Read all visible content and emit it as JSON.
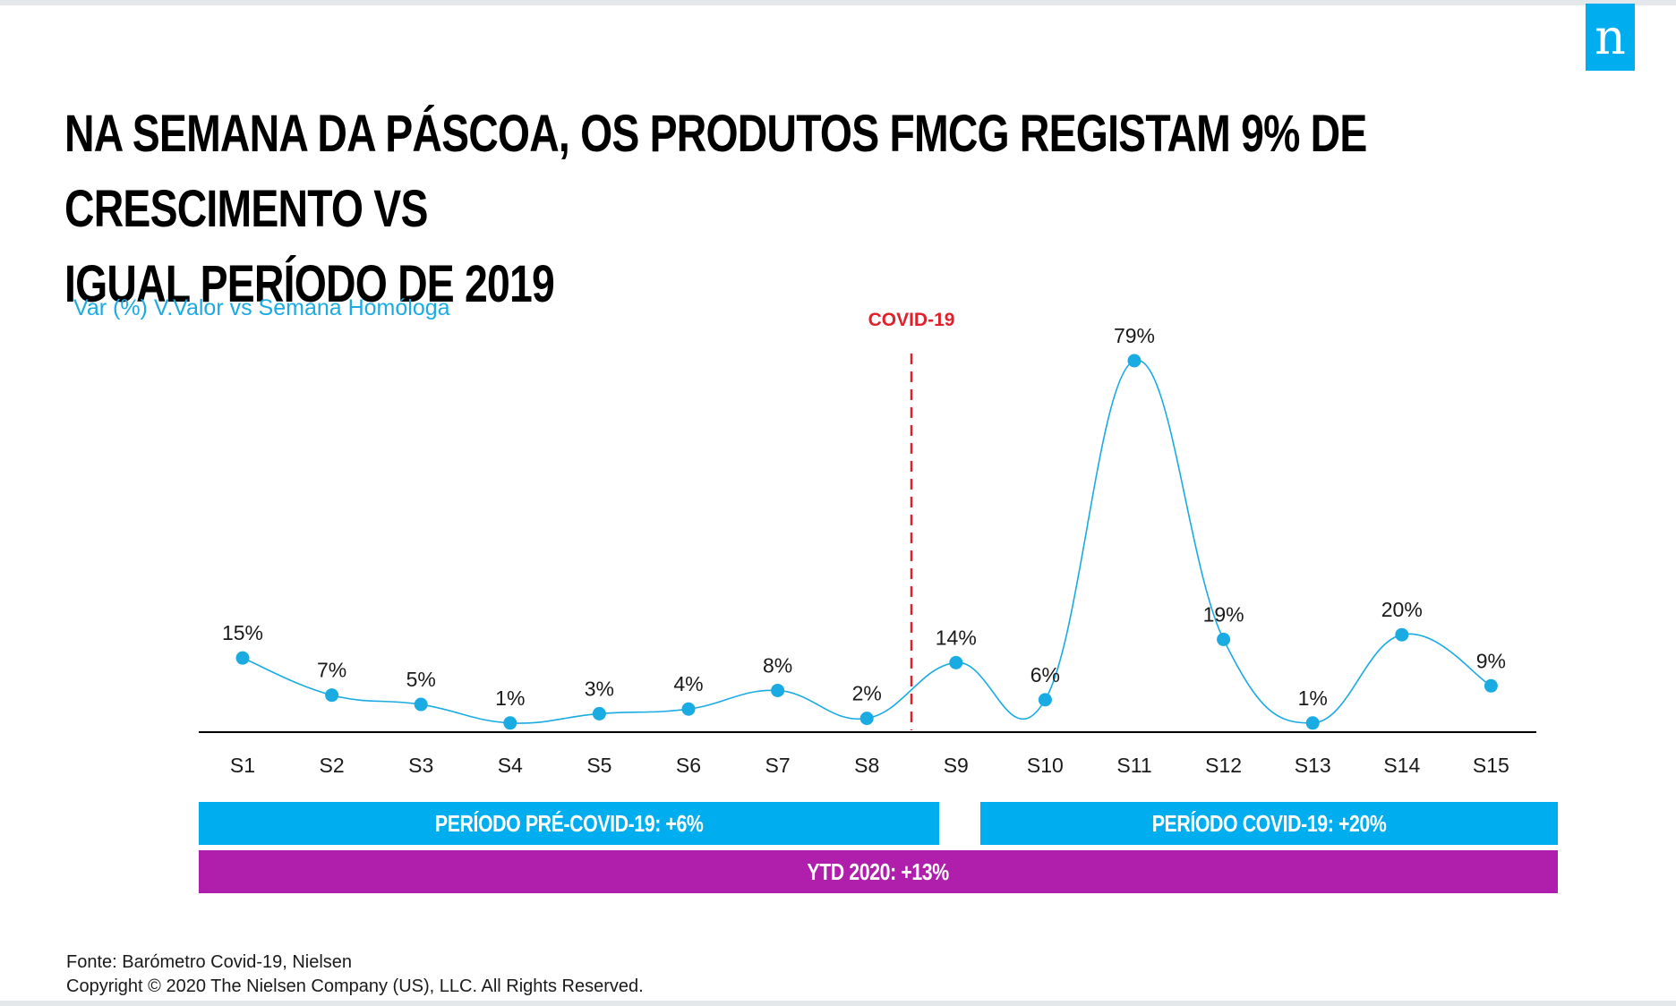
{
  "logo": {
    "letter": "n"
  },
  "header": {
    "title_line1": "NA SEMANA DA PÁSCOA, OS PRODUTOS FMCG REGISTAM 9% DE CRESCIMENTO VS",
    "title_line2": "IGUAL PERÍODO DE 2019"
  },
  "chart_subtitle": "Var (%) V.Valor vs Semana Homóloga",
  "chart_data": {
    "type": "line",
    "categories": [
      "S1",
      "S2",
      "S3",
      "S4",
      "S5",
      "S6",
      "S7",
      "S8",
      "S9",
      "S10",
      "S11",
      "S12",
      "S13",
      "S14",
      "S15"
    ],
    "values": [
      15,
      7,
      5,
      1,
      3,
      4,
      8,
      2,
      14,
      6,
      79,
      19,
      1,
      20,
      9
    ],
    "data_labels": [
      "15%",
      "7%",
      "5%",
      "1%",
      "3%",
      "4%",
      "8%",
      "2%",
      "14%",
      "6%",
      "79%",
      "19%",
      "1%",
      "20%",
      "9%"
    ],
    "ylim": [
      0,
      79
    ],
    "grid": false,
    "series_color": "#1aabe3",
    "annotation": {
      "label": "COVID-19",
      "between": [
        "S8",
        "S9"
      ],
      "color": "#e0202a",
      "style": "dashed"
    }
  },
  "bands": {
    "pre_covid": {
      "label": "PERÍODO PRÉ-COVID-19: +6%",
      "color": "#00aeef"
    },
    "covid": {
      "label": "PERÍODO COVID-19: +20%",
      "color": "#00aeef"
    },
    "ytd": {
      "label": "YTD 2020: +13%",
      "color": "#b01eac"
    }
  },
  "footer": {
    "source": "Fonte: Barómetro Covid-19, Nielsen",
    "copyright": "Copyright © 2020 The Nielsen Company (US), LLC. All Rights Reserved."
  }
}
